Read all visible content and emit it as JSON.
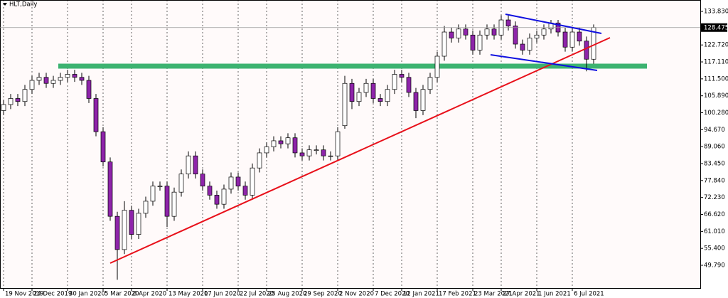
{
  "chart_data": {
    "type": "candlestick",
    "title": "HLT,Daily",
    "categories": [
      "19 Nov 2019",
      null,
      null,
      null,
      "24 Dec 2019",
      null,
      null,
      null,
      null,
      "30 Jan 2020",
      null,
      null,
      null,
      null,
      "5 Mar 2020",
      null,
      null,
      null,
      "8 Apr 2020",
      null,
      null,
      null,
      null,
      "13 May 2020",
      null,
      null,
      null,
      null,
      "17 Jun 2020",
      null,
      null,
      null,
      null,
      "22 Jul 2020",
      null,
      null,
      null,
      "25 Aug 2020",
      null,
      null,
      null,
      null,
      "29 Sep 2020",
      null,
      null,
      null,
      null,
      "2 Nov 2020",
      null,
      null,
      null,
      null,
      "7 Dec 2020",
      null,
      null,
      null,
      "12 Jan 2021",
      null,
      null,
      null,
      null,
      "17 Feb 2021",
      null,
      null,
      null,
      null,
      "23 Mar 2021",
      null,
      null,
      null,
      "27 Apr 2021",
      null,
      null,
      null,
      null,
      "1 Jun 2021",
      null,
      null,
      null,
      null,
      "6 Jul 2021",
      null,
      null,
      null
    ],
    "open": [
      101,
      103,
      105,
      104,
      108,
      111,
      112,
      110,
      111,
      112,
      113,
      112,
      111,
      105,
      94,
      84,
      66,
      55,
      68,
      60,
      67,
      71,
      76,
      76,
      66,
      74,
      80,
      86,
      80,
      76,
      73,
      70,
      75,
      79,
      76,
      73,
      82,
      87,
      89,
      91,
      90,
      92,
      87,
      86,
      88,
      88,
      86,
      86,
      96,
      110,
      104,
      107,
      110,
      105,
      104,
      108,
      113,
      112,
      107,
      101,
      108,
      112,
      119,
      127,
      125,
      128,
      126,
      121,
      126,
      128,
      126,
      131,
      129,
      123,
      121,
      125,
      126,
      128,
      130,
      127,
      122,
      127,
      124,
      118
    ],
    "high": [
      104.5,
      106.5,
      106.5,
      109.5,
      112.5,
      113.5,
      113.5,
      112.5,
      113.5,
      114.5,
      114.5,
      113.5,
      112.5,
      106.5,
      95.5,
      85.5,
      67.5,
      71,
      69.5,
      68.5,
      72.5,
      77.5,
      77.5,
      77.5,
      75.5,
      81.5,
      87.5,
      87.5,
      81.5,
      77.5,
      74.5,
      76.5,
      80.5,
      80.5,
      77.5,
      83.5,
      88.5,
      90.5,
      92.5,
      92.5,
      93.5,
      93.5,
      88.5,
      89.5,
      89.5,
      89.5,
      87.5,
      95.5,
      112.5,
      111.5,
      108.5,
      111.5,
      111.5,
      106.5,
      109.5,
      114.5,
      114.5,
      113.5,
      108.5,
      109.5,
      113.5,
      120.5,
      129,
      128.5,
      129.5,
      129.5,
      127.5,
      127.5,
      129.5,
      129.5,
      132.5,
      132.5,
      130.5,
      124.5,
      126.5,
      127.5,
      129.5,
      131,
      131,
      128.5,
      128.5,
      128.5,
      125.5,
      129.5
    ],
    "low": [
      99.5,
      101.5,
      102.5,
      102.5,
      106.5,
      109.5,
      108.5,
      108.5,
      109.5,
      110.5,
      110.5,
      109.5,
      103.5,
      92.5,
      82.5,
      64.5,
      45,
      53.5,
      58.5,
      58.5,
      65.5,
      69.5,
      74.5,
      62.5,
      64.5,
      72.5,
      78.5,
      78.5,
      74.5,
      71.5,
      68.5,
      68.5,
      73.5,
      74.5,
      71.5,
      71.5,
      80.5,
      85.5,
      87.5,
      88.5,
      88.5,
      85.5,
      84.5,
      84.5,
      86.5,
      84.5,
      84.5,
      84.5,
      95,
      101.5,
      102.5,
      105.5,
      103.5,
      102.5,
      102.5,
      106.5,
      110.5,
      105.5,
      98.5,
      99.5,
      106.5,
      110.5,
      117.5,
      123.5,
      123.5,
      124.5,
      119.5,
      119.5,
      124.5,
      124.5,
      124.5,
      127.5,
      121.5,
      119.5,
      119.5,
      123.5,
      124.5,
      126.5,
      125.5,
      120.5,
      120.5,
      122.5,
      114,
      116.5
    ],
    "close": [
      103,
      105,
      104,
      108,
      111,
      112,
      110,
      111,
      112,
      113,
      112,
      111,
      105,
      94,
      84,
      66,
      55,
      68,
      60,
      67,
      71,
      76,
      76,
      66,
      74,
      80,
      86,
      80,
      76,
      73,
      70,
      75,
      79,
      76,
      73,
      82,
      87,
      89,
      91,
      90,
      92,
      87,
      86,
      88,
      88,
      86,
      86,
      94,
      110,
      104,
      107,
      110,
      105,
      104,
      108,
      113,
      112,
      107,
      101,
      108,
      112,
      119,
      127,
      125,
      128,
      126,
      121,
      126,
      128,
      126,
      131,
      129,
      123,
      121,
      125,
      126,
      128,
      130,
      127,
      122,
      127,
      124,
      118,
      128.5
    ],
    "up_color": "#ffffff",
    "down_color": "#8e24aa",
    "ylim": [
      42.26,
      137.6
    ],
    "yticks": [
      {
        "value": 133.83,
        "label": "133.830"
      },
      {
        "value": 122.72,
        "label": "122.720"
      },
      {
        "value": 117.11,
        "label": "117.110"
      },
      {
        "value": 111.5,
        "label": "111.500"
      },
      {
        "value": 105.89,
        "label": "105.890"
      },
      {
        "value": 100.28,
        "label": "100.280"
      },
      {
        "value": 94.67,
        "label": "94.670"
      },
      {
        "value": 89.06,
        "label": "89.060"
      },
      {
        "value": 83.45,
        "label": "83.450"
      },
      {
        "value": 77.84,
        "label": "77.840"
      },
      {
        "value": 72.23,
        "label": "72.230"
      },
      {
        "value": 66.62,
        "label": "66.620"
      },
      {
        "value": 61.01,
        "label": "61.010"
      },
      {
        "value": 55.4,
        "label": "55.400"
      },
      {
        "value": 49.79,
        "label": "49.790"
      }
    ],
    "last_price": 128.475,
    "grid": true
  }
}
